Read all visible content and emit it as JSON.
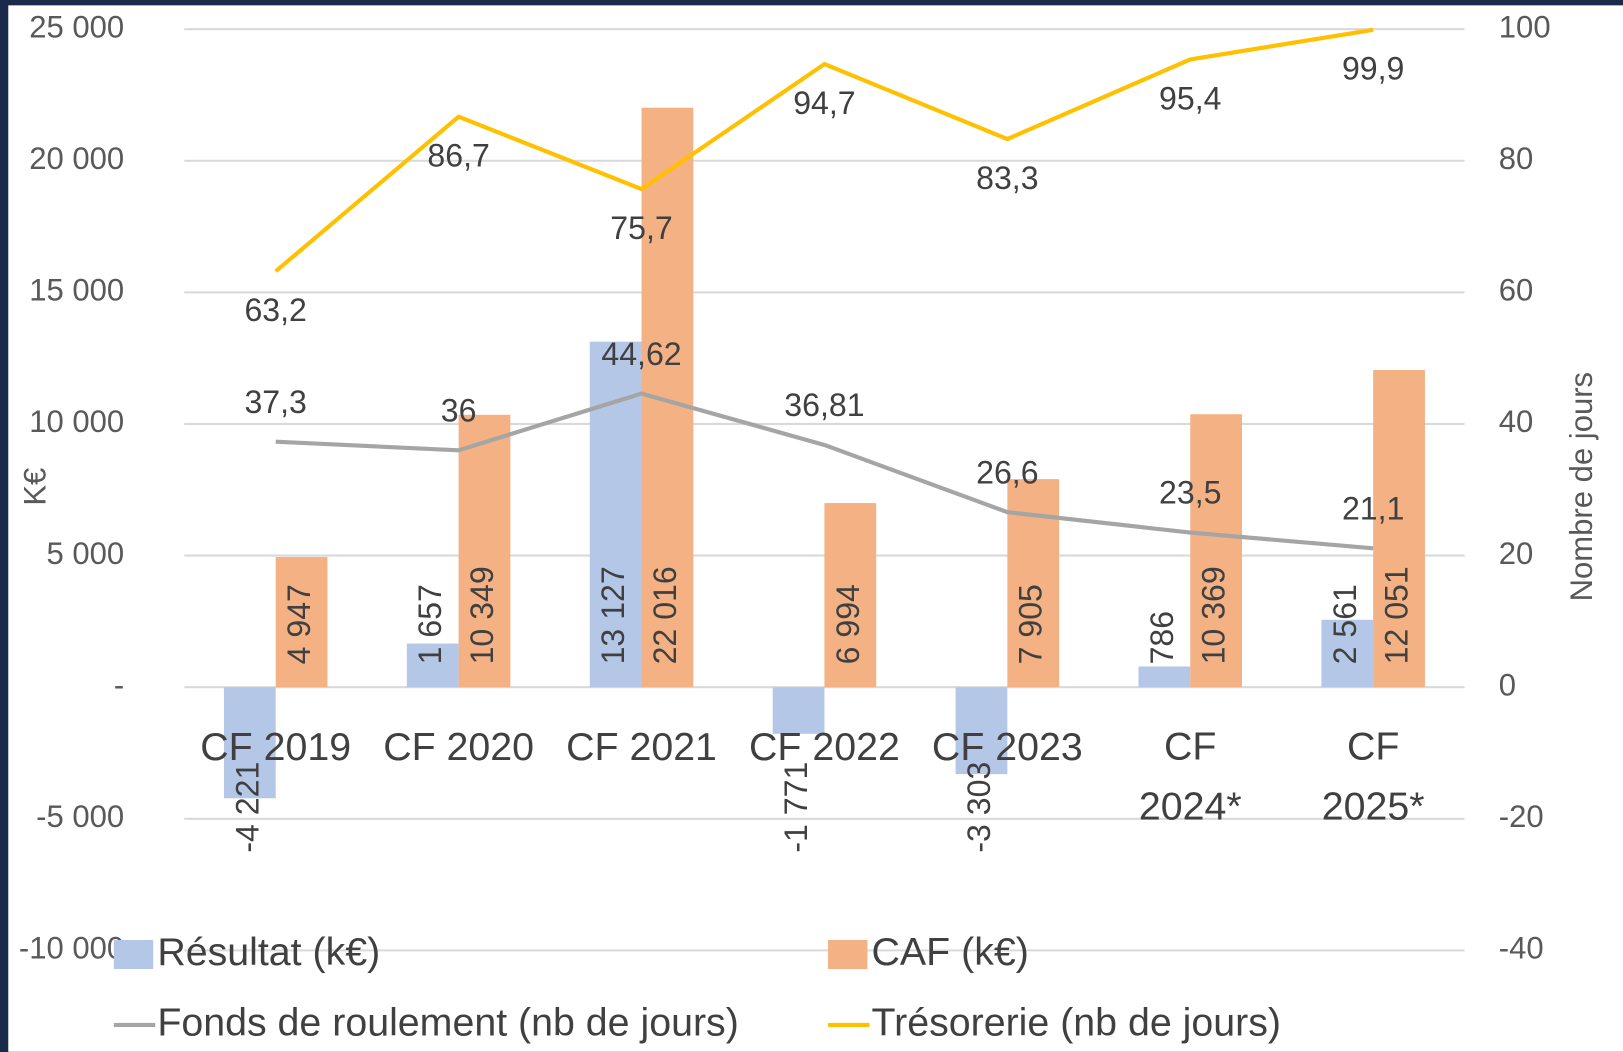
{
  "chart_data": {
    "type": "bar-line",
    "categories": [
      "CF 2019",
      "CF 2020",
      "CF 2021",
      "CF 2022",
      "CF 2023",
      "CF 2024*",
      "CF 2025*"
    ],
    "series": [
      {
        "name": "Résultat (k€)",
        "type": "bar",
        "color": "#b4c7e7",
        "values": [
          -4221,
          1657,
          13127,
          -1771,
          -3303,
          786,
          2561
        ],
        "value_labels": [
          "-4 221",
          "1 657",
          "13 127",
          "-1 771",
          "-3 303",
          "786",
          "2 561"
        ]
      },
      {
        "name": "CAF (k€)",
        "type": "bar",
        "color": "#f4b183",
        "values": [
          4947,
          10349,
          22016,
          6994,
          7905,
          10369,
          12051
        ],
        "value_labels": [
          "4 947",
          "10 349",
          "22 016",
          "6 994",
          "7 905",
          "10 369",
          "12 051"
        ]
      },
      {
        "name": "Fonds de roulement (nb de jours)",
        "type": "line",
        "axis": "y2",
        "color": "#a5a5a5",
        "values": [
          37.3,
          36,
          44.62,
          36.81,
          26.6,
          23.5,
          21.1
        ],
        "value_labels": [
          "37,3",
          "36",
          "44,62",
          "36,81",
          "26,6",
          "23,5",
          "21,1"
        ]
      },
      {
        "name": "Trésorerie (nb de jours)",
        "type": "line",
        "axis": "y2",
        "color": "#ffc000",
        "values": [
          63.2,
          86.7,
          75.7,
          94.7,
          83.3,
          95.4,
          99.9
        ],
        "value_labels": [
          "63,2",
          "86,7",
          "75,7",
          "94,7",
          "83,3",
          "95,4",
          "99,9"
        ]
      }
    ],
    "ylabel": "K€",
    "y2label": "Nombre de jours",
    "ylim": [
      -10000,
      25000
    ],
    "yticks": [
      {
        "value": -10000,
        "label": "-10 000"
      },
      {
        "value": -5000,
        "label": "-5 000"
      },
      {
        "value": 0,
        "label": "-"
      },
      {
        "value": 5000,
        "label": "5 000"
      },
      {
        "value": 10000,
        "label": "10 000"
      },
      {
        "value": 15000,
        "label": "15 000"
      },
      {
        "value": 20000,
        "label": "20 000"
      },
      {
        "value": 25000,
        "label": "25 000"
      }
    ],
    "y2lim": [
      -40,
      100
    ],
    "y2ticks": [
      -40,
      -20,
      0,
      20,
      40,
      60,
      80,
      100
    ],
    "grid": true,
    "legend": "bottom"
  }
}
